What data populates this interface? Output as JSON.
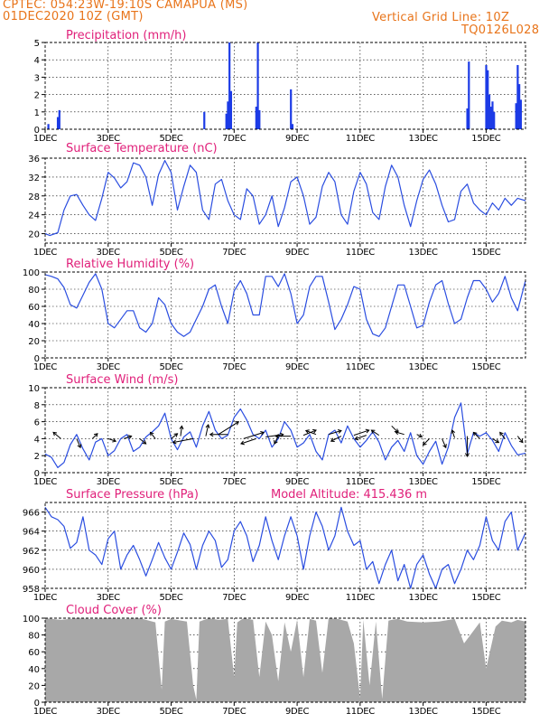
{
  "header": {
    "line1": "CPTEC:   054:23W-19:10S   CAMAPUA (MS)",
    "line2": "01DEC2020 10Z (GMT)",
    "grid_note": "Vertical Grid Line: 10Z",
    "code": "TQ0126L028"
  },
  "colors": {
    "header": "#e8741a",
    "title": "#e0207a",
    "series": "#2a4de0",
    "bar": "#1c3be6",
    "cloud": "#a8a8a8",
    "wind": "#000000"
  },
  "x_axis": {
    "range_days": [
      0,
      15.25
    ],
    "ticks": [
      0,
      2,
      4,
      6,
      8,
      10,
      12,
      14
    ],
    "labels": [
      "1DEC",
      "3DEC",
      "5DEC",
      "7DEC",
      "9DEC",
      "11DEC",
      "13DEC",
      "15DEC"
    ]
  },
  "chart_data": [
    {
      "id": "precip",
      "type": "bar",
      "title": "Precipitation (mm/h)",
      "ylim": [
        0,
        5
      ],
      "yticks": [
        0,
        1,
        2,
        3,
        4,
        5
      ],
      "x": [
        0.1,
        0.4,
        0.45,
        5.05,
        5.75,
        5.8,
        5.85,
        5.9,
        6.7,
        6.75,
        6.8,
        7.8,
        7.85,
        13.4,
        13.45,
        14.0,
        14.05,
        14.1,
        14.15,
        14.2,
        14.25,
        14.95,
        15.0,
        15.05,
        15.1
      ],
      "values": [
        0.3,
        0.7,
        1.1,
        1.0,
        0.9,
        1.6,
        5.0,
        2.2,
        1.3,
        5.0,
        1.1,
        2.3,
        0.3,
        1.2,
        3.9,
        3.7,
        3.4,
        2.0,
        1.3,
        1.6,
        1.0,
        1.5,
        3.7,
        2.6,
        1.7
      ]
    },
    {
      "id": "temp",
      "type": "line",
      "title": "Surface Temperature (nC)",
      "ylim": [
        18,
        36
      ],
      "yticks": [
        20,
        24,
        28,
        32,
        36
      ],
      "x": [
        0,
        0.15,
        0.4,
        0.6,
        0.8,
        1.0,
        1.2,
        1.4,
        1.6,
        1.8,
        2.0,
        2.2,
        2.4,
        2.6,
        2.8,
        3.0,
        3.2,
        3.4,
        3.6,
        3.8,
        4.0,
        4.2,
        4.4,
        4.6,
        4.8,
        5.0,
        5.2,
        5.4,
        5.6,
        5.8,
        6.0,
        6.2,
        6.4,
        6.6,
        6.8,
        7.0,
        7.2,
        7.4,
        7.6,
        7.8,
        8.0,
        8.2,
        8.4,
        8.6,
        8.8,
        9.0,
        9.2,
        9.4,
        9.6,
        9.8,
        10.0,
        10.2,
        10.4,
        10.6,
        10.8,
        11.0,
        11.2,
        11.4,
        11.6,
        11.8,
        12.0,
        12.2,
        12.4,
        12.6,
        12.8,
        13.0,
        13.2,
        13.4,
        13.6,
        13.8,
        14.0,
        14.2,
        14.4,
        14.6,
        14.8,
        15.0,
        15.25
      ],
      "values": [
        20,
        19.6,
        20.2,
        25,
        28,
        28.3,
        26,
        24,
        22.8,
        27.5,
        33,
        31.8,
        29.7,
        31,
        35,
        34.5,
        32,
        26,
        32.5,
        35.5,
        33,
        25,
        30,
        34.5,
        33,
        25,
        23,
        30.5,
        31.5,
        27,
        24,
        23,
        29.5,
        28,
        22,
        24,
        28,
        21.5,
        25.5,
        31,
        32,
        28,
        22,
        23.5,
        30,
        33,
        31,
        24,
        22,
        29,
        33,
        30.5,
        24.5,
        23,
        30,
        34.5,
        32,
        26,
        21.5,
        27,
        31.5,
        33.5,
        30.5,
        26,
        22.5,
        23,
        29,
        30.5,
        26.5,
        25,
        24,
        26.5,
        25,
        27.5,
        26,
        27.5,
        27
      ]
    },
    {
      "id": "rh",
      "type": "line",
      "title": "Relative Humidity (%)",
      "ylim": [
        0,
        100
      ],
      "yticks": [
        0,
        20,
        40,
        60,
        80,
        100
      ],
      "x": [
        0,
        0.2,
        0.4,
        0.6,
        0.8,
        1.0,
        1.2,
        1.4,
        1.6,
        1.8,
        2.0,
        2.2,
        2.4,
        2.6,
        2.8,
        3.0,
        3.2,
        3.4,
        3.6,
        3.8,
        4.0,
        4.2,
        4.4,
        4.6,
        4.8,
        5.0,
        5.2,
        5.4,
        5.6,
        5.8,
        6.0,
        6.2,
        6.4,
        6.6,
        6.8,
        7.0,
        7.2,
        7.4,
        7.6,
        7.8,
        8.0,
        8.2,
        8.4,
        8.6,
        8.8,
        9.0,
        9.2,
        9.4,
        9.6,
        9.8,
        10.0,
        10.2,
        10.4,
        10.6,
        10.8,
        11.0,
        11.2,
        11.4,
        11.6,
        11.8,
        12.0,
        12.2,
        12.4,
        12.6,
        12.8,
        13.0,
        13.2,
        13.4,
        13.6,
        13.8,
        14.0,
        14.2,
        14.4,
        14.6,
        14.8,
        15.0,
        15.25
      ],
      "values": [
        97,
        95,
        92,
        82,
        62,
        58,
        73,
        88,
        98,
        80,
        40,
        35,
        45,
        55,
        55,
        35,
        30,
        40,
        70,
        62,
        40,
        30,
        25,
        30,
        45,
        60,
        80,
        85,
        60,
        40,
        78,
        90,
        75,
        50,
        50,
        95,
        95,
        83,
        98,
        75,
        40,
        50,
        83,
        95,
        95,
        65,
        33,
        45,
        62,
        83,
        80,
        45,
        28,
        25,
        35,
        60,
        85,
        85,
        60,
        35,
        38,
        65,
        85,
        90,
        63,
        40,
        45,
        70,
        90,
        90,
        80,
        65,
        75,
        95,
        70,
        55,
        90
      ]
    },
    {
      "id": "wind",
      "type": "line",
      "title": "Surface Wind (m/s)",
      "ylim": [
        0,
        10
      ],
      "yticks": [
        0,
        2,
        4,
        6,
        8,
        10
      ],
      "x": [
        0,
        0.2,
        0.4,
        0.6,
        0.8,
        1.0,
        1.2,
        1.4,
        1.6,
        1.8,
        2.0,
        2.2,
        2.4,
        2.6,
        2.8,
        3.0,
        3.2,
        3.4,
        3.6,
        3.8,
        4.0,
        4.2,
        4.4,
        4.6,
        4.8,
        5.0,
        5.2,
        5.4,
        5.6,
        5.8,
        6.0,
        6.2,
        6.4,
        6.6,
        6.8,
        7.0,
        7.2,
        7.4,
        7.6,
        7.8,
        8.0,
        8.2,
        8.4,
        8.6,
        8.8,
        9.0,
        9.2,
        9.4,
        9.6,
        9.8,
        10.0,
        10.2,
        10.4,
        10.6,
        10.8,
        11.0,
        11.2,
        11.4,
        11.6,
        11.8,
        12.0,
        12.2,
        12.4,
        12.6,
        12.8,
        13.0,
        13.2,
        13.4,
        13.6,
        13.8,
        14.0,
        14.2,
        14.4,
        14.6,
        14.8,
        15.0,
        15.25
      ],
      "values": [
        2.2,
        1.8,
        0.6,
        1.2,
        3.3,
        4.5,
        2.8,
        1.5,
        3.6,
        4.0,
        2.0,
        2.6,
        4.0,
        4.5,
        2.5,
        3.0,
        4.2,
        4.8,
        5.5,
        7.0,
        4.0,
        2.7,
        4.2,
        4.8,
        3.0,
        5.5,
        7.2,
        5.0,
        4.0,
        4.4,
        6.5,
        7.5,
        6.2,
        4.5,
        4.0,
        5.0,
        3.0,
        4.0,
        6.0,
        5.0,
        3.0,
        3.5,
        4.5,
        2.5,
        1.5,
        4.5,
        5.0,
        3.5,
        5.5,
        4.0,
        3.0,
        3.8,
        4.8,
        3.6,
        1.5,
        3.0,
        3.8,
        2.5,
        4.7,
        2.0,
        1.0,
        2.5,
        3.7,
        1.0,
        3.0,
        6.5,
        8.2,
        2.2,
        4.7,
        4.3,
        4.7,
        3.8,
        2.5,
        4.7,
        3.2,
        2.1,
        2.3
      ],
      "vectors": [
        {
          "x": 0.5,
          "speed": 4.0,
          "u": -0.6,
          "v": 0.5
        },
        {
          "x": 1.0,
          "speed": 4.0,
          "u": 0.3,
          "v": -0.7
        },
        {
          "x": 1.5,
          "speed": 4.0,
          "u": 0.4,
          "v": 0.4
        },
        {
          "x": 2.0,
          "speed": 4.0,
          "u": 0.6,
          "v": -0.2
        },
        {
          "x": 2.5,
          "speed": 4.0,
          "u": 0.6,
          "v": 0.2
        },
        {
          "x": 3.0,
          "speed": 4.0,
          "u": 0.5,
          "v": -0.4
        },
        {
          "x": 3.5,
          "speed": 4.0,
          "u": -0.4,
          "v": 0.5
        },
        {
          "x": 4.0,
          "speed": 4.0,
          "u": 0.5,
          "v": 0.4
        },
        {
          "x": 4.3,
          "speed": 4.3,
          "u": 0.1,
          "v": 0.8
        },
        {
          "x": 4.7,
          "speed": 4.0,
          "u": -1.6,
          "v": -0.3
        },
        {
          "x": 5.1,
          "speed": 4.3,
          "u": 0.2,
          "v": 0.9
        },
        {
          "x": 5.5,
          "speed": 4.5,
          "u": 1.6,
          "v": 1.0
        },
        {
          "x": 5.8,
          "speed": 4.5,
          "u": -1.4,
          "v": 0.0
        },
        {
          "x": 6.3,
          "speed": 4.0,
          "u": 1.6,
          "v": 0.5
        },
        {
          "x": 6.7,
          "speed": 4.0,
          "u": -1.2,
          "v": -0.4
        },
        {
          "x": 7.0,
          "speed": 4.2,
          "u": 1.4,
          "v": 0.2
        },
        {
          "x": 7.4,
          "speed": 4.3,
          "u": -0.3,
          "v": -0.6
        },
        {
          "x": 7.8,
          "speed": 4.3,
          "u": -1.2,
          "v": 0.0
        },
        {
          "x": 8.2,
          "speed": 4.4,
          "u": 1.0,
          "v": 0.4
        },
        {
          "x": 8.6,
          "speed": 4.5,
          "u": -0.8,
          "v": 0.3
        },
        {
          "x": 9.0,
          "speed": 4.5,
          "u": 1.0,
          "v": 0.3
        },
        {
          "x": 9.4,
          "speed": 4.3,
          "u": -0.8,
          "v": -0.4
        },
        {
          "x": 9.8,
          "speed": 4.4,
          "u": 1.2,
          "v": 0.4
        },
        {
          "x": 10.2,
          "speed": 4.4,
          "u": -0.9,
          "v": -0.3
        },
        {
          "x": 10.6,
          "speed": 4.4,
          "u": -0.6,
          "v": 0.4
        },
        {
          "x": 11.0,
          "speed": 5.5,
          "u": 0.5,
          "v": -0.5
        },
        {
          "x": 11.4,
          "speed": 4.5,
          "u": -0.7,
          "v": 0.2
        },
        {
          "x": 11.8,
          "speed": 4.5,
          "u": 0.4,
          "v": -0.2
        },
        {
          "x": 12.2,
          "speed": 4.0,
          "u": -0.5,
          "v": -0.5
        },
        {
          "x": 12.6,
          "speed": 4.0,
          "u": 0.3,
          "v": -0.7
        },
        {
          "x": 13.0,
          "speed": 4.1,
          "u": -0.2,
          "v": 0.6
        },
        {
          "x": 13.4,
          "speed": 4.3,
          "u": 0.0,
          "v": -1.6
        },
        {
          "x": 13.8,
          "speed": 4.0,
          "u": -0.5,
          "v": 0.5
        },
        {
          "x": 14.2,
          "speed": 4.0,
          "u": 0.5,
          "v": -0.3
        },
        {
          "x": 14.6,
          "speed": 4.0,
          "u": -0.4,
          "v": 0.5
        },
        {
          "x": 15.0,
          "speed": 4.3,
          "u": 0.4,
          "v": -0.5
        }
      ]
    },
    {
      "id": "pressure",
      "type": "line",
      "title": "Surface Pressure (hPa)",
      "note": "Model Altitude: 415.436  m",
      "ylim": [
        958,
        967
      ],
      "yticks": [
        958,
        960,
        962,
        964,
        966
      ],
      "x": [
        0,
        0.2,
        0.4,
        0.6,
        0.8,
        1.0,
        1.2,
        1.4,
        1.6,
        1.8,
        2.0,
        2.2,
        2.4,
        2.6,
        2.8,
        3.0,
        3.2,
        3.4,
        3.6,
        3.8,
        4.0,
        4.2,
        4.4,
        4.6,
        4.8,
        5.0,
        5.2,
        5.4,
        5.6,
        5.8,
        6.0,
        6.2,
        6.4,
        6.6,
        6.8,
        7.0,
        7.2,
        7.4,
        7.6,
        7.8,
        8.0,
        8.2,
        8.4,
        8.6,
        8.8,
        9.0,
        9.2,
        9.4,
        9.6,
        9.8,
        10.0,
        10.2,
        10.4,
        10.6,
        10.8,
        11.0,
        11.2,
        11.4,
        11.6,
        11.8,
        12.0,
        12.2,
        12.4,
        12.6,
        12.8,
        13.0,
        13.2,
        13.4,
        13.6,
        13.8,
        14.0,
        14.2,
        14.4,
        14.6,
        14.8,
        15.0,
        15.25
      ],
      "values": [
        966.5,
        965.5,
        965.2,
        964.5,
        962.2,
        962.8,
        965.5,
        962.0,
        961.5,
        960.5,
        963.2,
        964.0,
        960.0,
        961.5,
        962.5,
        961.0,
        959.3,
        961.0,
        962.8,
        961.2,
        960.0,
        961.8,
        963.8,
        962.6,
        960.0,
        962.5,
        964.0,
        963.0,
        960.2,
        961.0,
        964.0,
        965.0,
        963.5,
        960.8,
        962.5,
        965.5,
        963.0,
        961.0,
        963.5,
        965.5,
        963.5,
        960.0,
        963.5,
        966.0,
        964.5,
        962.0,
        963.5,
        966.5,
        964.0,
        962.5,
        963.0,
        960.0,
        960.8,
        958.5,
        960.5,
        962.0,
        958.8,
        960.5,
        958.0,
        960.5,
        961.5,
        959.5,
        958.0,
        960.0,
        960.5,
        958.5,
        960.0,
        962.0,
        961.0,
        962.5,
        965.5,
        963.0,
        962.0,
        965.0,
        966.0,
        962.0,
        963.8
      ]
    },
    {
      "id": "cloud",
      "type": "area",
      "title": "Cloud Cover (%)",
      "ylim": [
        0,
        100
      ],
      "yticks": [
        0,
        20,
        40,
        60,
        80,
        100
      ],
      "x": [
        0,
        0.5,
        1.0,
        1.5,
        2.0,
        2.5,
        3.0,
        3.5,
        3.7,
        3.8,
        4.0,
        4.5,
        4.7,
        4.8,
        4.9,
        5.2,
        5.5,
        5.8,
        6.0,
        6.1,
        6.3,
        6.6,
        6.8,
        7.0,
        7.2,
        7.4,
        7.6,
        7.8,
        8.0,
        8.2,
        8.4,
        8.6,
        8.8,
        9.0,
        9.3,
        9.6,
        9.8,
        10.0,
        10.1,
        10.3,
        10.5,
        10.7,
        10.9,
        11.0,
        11.2,
        11.5,
        12.0,
        12.5,
        13.0,
        13.3,
        13.5,
        13.8,
        14.0,
        14.3,
        14.5,
        14.8,
        15.0,
        15.25
      ],
      "values": [
        100,
        98,
        100,
        99,
        100,
        99,
        100,
        95,
        15,
        96,
        99,
        96,
        20,
        3,
        96,
        100,
        98,
        99,
        30,
        95,
        100,
        98,
        30,
        96,
        80,
        25,
        95,
        60,
        98,
        30,
        99,
        97,
        35,
        100,
        99,
        96,
        70,
        5,
        98,
        20,
        96,
        4,
        97,
        98,
        99,
        96,
        95,
        96,
        99,
        70,
        80,
        95,
        40,
        90,
        97,
        95,
        98,
        96
      ]
    }
  ]
}
